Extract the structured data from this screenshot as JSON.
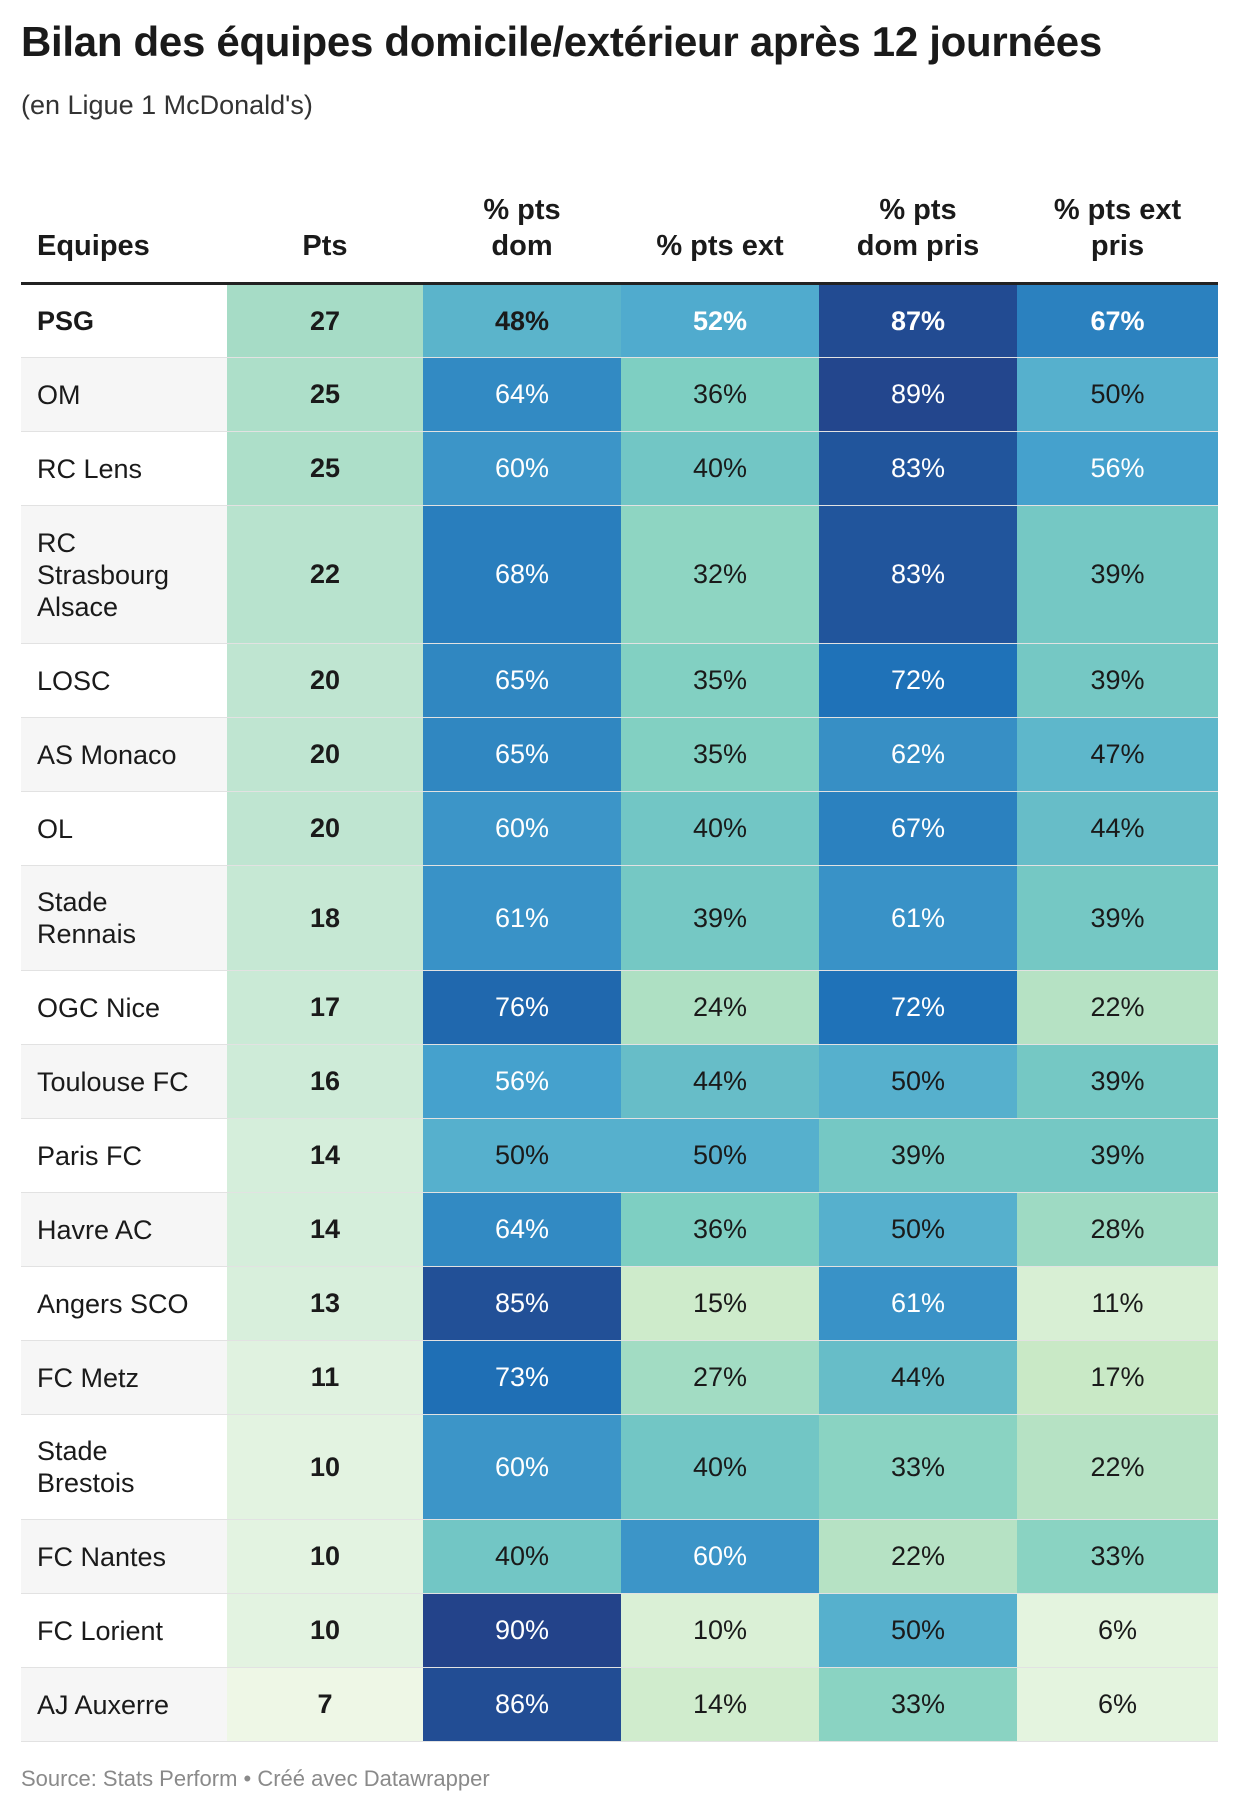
{
  "title": "Bilan des équipes domicile/extérieur après 12 journées",
  "subtitle": "(en Ligue 1 McDonald's)",
  "footer": "Source: Stats Perform • Créé avec Datawrapper",
  "colors": {
    "pts_scale": [
      "#eef7e6",
      "#a6dcc6"
    ],
    "pct_scale": [
      "#f3faec",
      "#c6e8c4",
      "#7ecfc2",
      "#4aa7d0",
      "#1f72b8",
      "#23438a"
    ]
  },
  "chart_data": {
    "type": "table",
    "columns": [
      "Equipes",
      "Pts",
      "% pts dom",
      "% pts ext",
      "% pts dom pris",
      "% pts ext pris"
    ],
    "rows": [
      {
        "team": "PSG",
        "pts": 27,
        "dom": "48%",
        "ext": "52%",
        "dom_pris": "87%",
        "ext_pris": "67%",
        "bold": true
      },
      {
        "team": "OM",
        "pts": 25,
        "dom": "64%",
        "ext": "36%",
        "dom_pris": "89%",
        "ext_pris": "50%"
      },
      {
        "team": "RC Lens",
        "pts": 25,
        "dom": "60%",
        "ext": "40%",
        "dom_pris": "83%",
        "ext_pris": "56%"
      },
      {
        "team": "RC Strasbourg Alsace",
        "pts": 22,
        "dom": "68%",
        "ext": "32%",
        "dom_pris": "83%",
        "ext_pris": "39%"
      },
      {
        "team": "LOSC",
        "pts": 20,
        "dom": "65%",
        "ext": "35%",
        "dom_pris": "72%",
        "ext_pris": "39%"
      },
      {
        "team": "AS Monaco",
        "pts": 20,
        "dom": "65%",
        "ext": "35%",
        "dom_pris": "62%",
        "ext_pris": "47%"
      },
      {
        "team": "OL",
        "pts": 20,
        "dom": "60%",
        "ext": "40%",
        "dom_pris": "67%",
        "ext_pris": "44%"
      },
      {
        "team": "Stade Rennais",
        "pts": 18,
        "dom": "61%",
        "ext": "39%",
        "dom_pris": "61%",
        "ext_pris": "39%"
      },
      {
        "team": "OGC Nice",
        "pts": 17,
        "dom": "76%",
        "ext": "24%",
        "dom_pris": "72%",
        "ext_pris": "22%"
      },
      {
        "team": "Toulouse FC",
        "pts": 16,
        "dom": "56%",
        "ext": "44%",
        "dom_pris": "50%",
        "ext_pris": "39%"
      },
      {
        "team": "Paris FC",
        "pts": 14,
        "dom": "50%",
        "ext": "50%",
        "dom_pris": "39%",
        "ext_pris": "39%"
      },
      {
        "team": "Havre AC",
        "pts": 14,
        "dom": "64%",
        "ext": "36%",
        "dom_pris": "50%",
        "ext_pris": "28%"
      },
      {
        "team": "Angers SCO",
        "pts": 13,
        "dom": "85%",
        "ext": "15%",
        "dom_pris": "61%",
        "ext_pris": "11%"
      },
      {
        "team": "FC Metz",
        "pts": 11,
        "dom": "73%",
        "ext": "27%",
        "dom_pris": "44%",
        "ext_pris": "17%"
      },
      {
        "team": "Stade Brestois",
        "pts": 10,
        "dom": "60%",
        "ext": "40%",
        "dom_pris": "33%",
        "ext_pris": "22%"
      },
      {
        "team": "FC Nantes",
        "pts": 10,
        "dom": "40%",
        "ext": "60%",
        "dom_pris": "22%",
        "ext_pris": "33%"
      },
      {
        "team": "FC Lorient",
        "pts": 10,
        "dom": "90%",
        "ext": "10%",
        "dom_pris": "50%",
        "ext_pris": "6%"
      },
      {
        "team": "AJ Auxerre",
        "pts": 7,
        "dom": "86%",
        "ext": "14%",
        "dom_pris": "33%",
        "ext_pris": "6%"
      }
    ]
  }
}
